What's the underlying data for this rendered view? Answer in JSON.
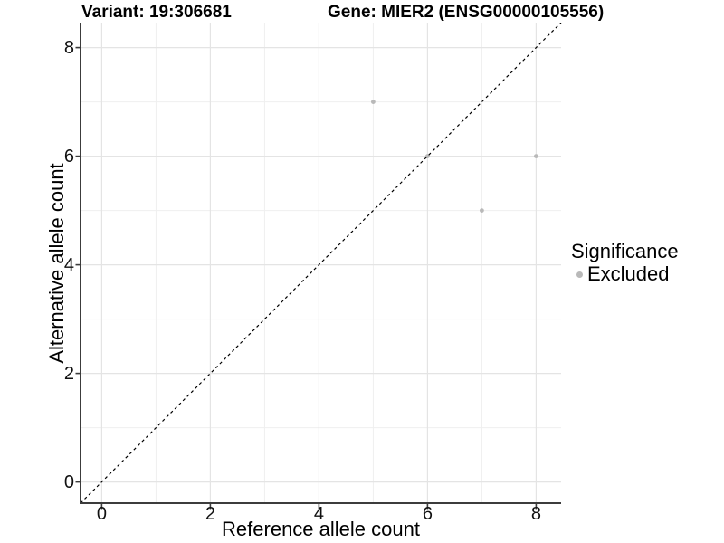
{
  "chart_data": {
    "type": "scatter",
    "title_left": "Variant: 19:306681",
    "title_right": "Gene: MIER2 (ENSG00000105556)",
    "xlabel": "Reference allele count",
    "ylabel": "Alternative allele count",
    "xlim": [
      -0.39,
      8.46
    ],
    "ylim": [
      -0.39,
      8.46
    ],
    "x_ticks": [
      0,
      2,
      4,
      6,
      8
    ],
    "y_ticks": [
      0,
      2,
      4,
      6,
      8
    ],
    "x_minor_gridlines": [
      1,
      3,
      5,
      7
    ],
    "y_minor_gridlines": [
      1,
      3,
      5,
      7
    ],
    "grid": "on",
    "series": [
      {
        "name": "Excluded",
        "color": "#b9b9b9",
        "points": [
          {
            "x": 5,
            "y": 7
          },
          {
            "x": 6,
            "y": 6
          },
          {
            "x": 7,
            "y": 5
          },
          {
            "x": 8,
            "y": 6
          }
        ]
      }
    ],
    "reference_line": {
      "slope": 1,
      "intercept": 0,
      "style": "dashed",
      "color": "#000000"
    },
    "legend": {
      "title": "Significance",
      "position": "right",
      "entries": [
        {
          "label": "Excluded",
          "color": "#b9b9b9"
        }
      ]
    }
  },
  "style_colors": {
    "background": "#ffffff",
    "grid_major": "#e4e4e4",
    "grid_minor": "#efefef",
    "axis_line": "#3c3c3c",
    "tick_text": "#111111",
    "title_text": "#000000"
  }
}
